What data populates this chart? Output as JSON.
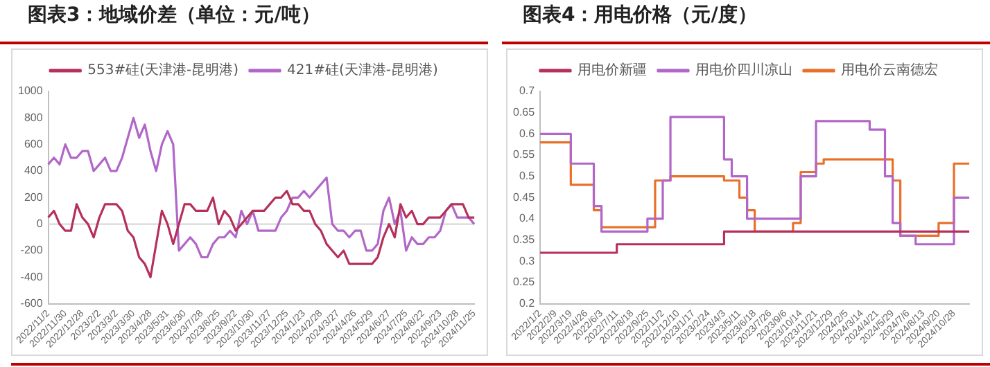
{
  "chart_data": [
    {
      "type": "line",
      "title": "图表3：地域价差（单位：元/吨）",
      "legend": "top",
      "grid": false,
      "marker": "none",
      "line_style": "solid",
      "categories": [
        "2022/11/2",
        null,
        null,
        "2022/11/30",
        null,
        null,
        "2022/12/28",
        null,
        null,
        "2023/2/2",
        null,
        null,
        "2023/3/2",
        null,
        null,
        "2023/3/30",
        null,
        null,
        "2023/4/28",
        null,
        null,
        "2023/5/31",
        null,
        null,
        "2023/6/30",
        null,
        null,
        "2023/7/28",
        null,
        null,
        "2023/8/25",
        null,
        null,
        "2023/9/22",
        null,
        null,
        "2023/10/30",
        null,
        null,
        "2023/11/27",
        null,
        null,
        "2023/12/25",
        null,
        null,
        "2024/1/23",
        null,
        null,
        "2024/2/28",
        null,
        null,
        "2024/3/27",
        null,
        null,
        "2024/4/26",
        null,
        null,
        "2024/5/29",
        null,
        null,
        "2024/6/27",
        null,
        null,
        "2024/7/25",
        null,
        null,
        "2024/8/22",
        null,
        null,
        "2024/9/23",
        null,
        null,
        "2024/10/28",
        null,
        null,
        "2024/11/25"
      ],
      "ylim": [
        -600,
        1000
      ],
      "yticks": [
        -600,
        -400,
        -200,
        0,
        200,
        400,
        600,
        800,
        1000
      ],
      "ref_lines": [
        {
          "axis": "y",
          "value": 0,
          "color": "#d9d9d9"
        }
      ],
      "series": [
        {
          "name": "553#硅(天津港-昆明港)",
          "color": "#b5305a",
          "values": [
            50,
            100,
            0,
            -50,
            -50,
            150,
            50,
            0,
            -100,
            50,
            150,
            150,
            150,
            100,
            -50,
            -100,
            -250,
            -300,
            -400,
            -150,
            100,
            0,
            -150,
            0,
            150,
            150,
            100,
            100,
            100,
            200,
            0,
            100,
            50,
            -50,
            0,
            50,
            100,
            100,
            100,
            150,
            200,
            200,
            250,
            150,
            150,
            100,
            100,
            0,
            -50,
            -150,
            -200,
            -250,
            -200,
            -300,
            -300,
            -300,
            -300,
            -300,
            -250,
            -100,
            0,
            -100,
            150,
            50,
            100,
            0,
            0,
            50,
            50,
            50,
            100,
            150,
            150,
            150,
            50,
            50
          ]
        },
        {
          "name": "421#硅(天津港-昆明港)",
          "color": "#b166c8",
          "values": [
            450,
            500,
            450,
            600,
            500,
            500,
            550,
            550,
            400,
            450,
            500,
            400,
            400,
            500,
            650,
            800,
            650,
            750,
            550,
            400,
            600,
            700,
            600,
            -200,
            -150,
            -100,
            -150,
            -250,
            -250,
            -150,
            -100,
            -100,
            -50,
            -100,
            100,
            0,
            100,
            -50,
            -50,
            -50,
            -50,
            50,
            100,
            200,
            200,
            250,
            200,
            250,
            300,
            350,
            0,
            -50,
            -50,
            -100,
            -50,
            -50,
            -200,
            -200,
            -150,
            100,
            200,
            0,
            100,
            -200,
            -100,
            -150,
            -150,
            -100,
            -100,
            -50,
            100,
            150,
            50,
            50,
            50,
            0
          ]
        }
      ]
    },
    {
      "type": "step",
      "title": "图表4：用电价格（元/度）",
      "legend": "top",
      "grid": false,
      "marker": "none",
      "line_style": "solid",
      "categories": [
        "2022/1/2",
        null,
        "2022/2/9",
        null,
        "2022/3/19",
        null,
        "2022/4/26",
        null,
        "2022/6/3",
        null,
        "2022/7/11",
        null,
        "2022/8/18",
        null,
        "2022/9/25",
        null,
        "2022/11/2",
        null,
        "2022/12/10",
        null,
        "2023/1/17",
        null,
        "2023/2/24",
        null,
        "2023/4/3",
        null,
        "2023/5/11",
        null,
        "2023/6/18",
        null,
        "2023/7/26",
        null,
        "2023/9/6",
        null,
        "2023/10/14",
        null,
        "2023/11/21",
        null,
        "2023/12/29",
        null,
        "2024/2/5",
        null,
        "2024/3/14",
        null,
        "2024/4/21",
        null,
        "2024/5/29",
        null,
        "2024/7/6",
        null,
        "2024/8/13",
        null,
        "2024/9/20",
        null,
        "2024/10/28",
        null,
        null
      ],
      "ylim": [
        0.2,
        0.7
      ],
      "yticks": [
        0.2,
        0.25,
        0.3,
        0.35,
        0.4,
        0.45,
        0.5,
        0.55,
        0.6,
        0.65,
        0.7
      ],
      "series": [
        {
          "name": "用电价新疆",
          "color": "#b5305a",
          "values": [
            0.32,
            0.32,
            0.32,
            0.32,
            0.32,
            0.32,
            0.32,
            0.32,
            0.32,
            0.32,
            0.32,
            0.34,
            0.34,
            0.34,
            0.34,
            0.34,
            0.34,
            0.34,
            0.34,
            0.34,
            0.34,
            0.34,
            0.34,
            0.34,
            0.34,
            0.37,
            0.37,
            0.37,
            0.37,
            0.37,
            0.37,
            0.37,
            0.37,
            0.37,
            0.37,
            0.37,
            0.37,
            0.37,
            0.37,
            0.37,
            0.37,
            0.37,
            0.37,
            0.37,
            0.37,
            0.37,
            0.37,
            0.37,
            0.37,
            0.37,
            0.37,
            0.37,
            0.37,
            0.37,
            0.37,
            0.37,
            0.37
          ]
        },
        {
          "name": "用电价四川凉山",
          "color": "#b166c8",
          "values": [
            0.6,
            0.6,
            0.6,
            0.6,
            0.6,
            0.53,
            0.53,
            0.53,
            0.43,
            0.37,
            0.37,
            0.37,
            0.37,
            0.37,
            0.37,
            0.4,
            0.4,
            0.49,
            0.64,
            0.64,
            0.64,
            0.64,
            0.64,
            0.64,
            0.64,
            0.54,
            0.5,
            0.5,
            0.4,
            0.4,
            0.4,
            0.4,
            0.4,
            0.4,
            0.4,
            0.5,
            0.5,
            0.63,
            0.63,
            0.63,
            0.63,
            0.63,
            0.63,
            0.63,
            0.61,
            0.61,
            0.5,
            0.39,
            0.36,
            0.36,
            0.34,
            0.34,
            0.34,
            0.34,
            0.34,
            0.45,
            0.45
          ]
        },
        {
          "name": "用电价云南德宏",
          "color": "#e8702a",
          "values": [
            0.58,
            0.58,
            0.58,
            0.58,
            0.58,
            0.48,
            0.48,
            0.48,
            0.42,
            0.38,
            0.38,
            0.38,
            0.38,
            0.38,
            0.38,
            0.38,
            0.49,
            0.49,
            0.5,
            0.5,
            0.5,
            0.5,
            0.5,
            0.5,
            0.5,
            0.49,
            0.49,
            0.45,
            0.42,
            0.37,
            0.37,
            0.37,
            0.37,
            0.37,
            0.39,
            0.51,
            0.51,
            0.53,
            0.54,
            0.54,
            0.54,
            0.54,
            0.54,
            0.54,
            0.54,
            0.54,
            0.54,
            0.49,
            0.36,
            0.36,
            0.36,
            0.36,
            0.36,
            0.39,
            0.39,
            0.53,
            0.53
          ]
        }
      ]
    }
  ]
}
